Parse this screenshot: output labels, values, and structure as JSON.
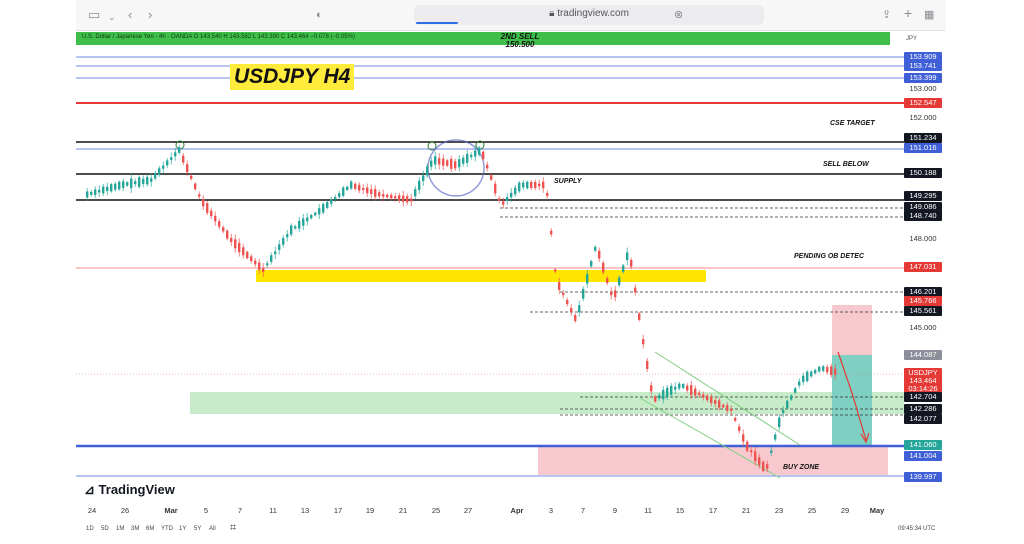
{
  "browser": {
    "url": "tradingview.com",
    "icons": [
      "sidebar-icon",
      "chevron-down-icon",
      "back-icon",
      "forward-icon",
      "shield-icon",
      "lock-icon",
      "reload-icon",
      "share-icon",
      "plus-icon",
      "tabs-icon"
    ]
  },
  "symbol": {
    "text": "U.S. Dollar / Japanese Yen · 4h · OANDA   O 143.540  H 143.582  L 143.390  C 143.464  −0.078 (−0.05%)",
    "currency": "JPY"
  },
  "title": "USDJPY H4",
  "annotations": {
    "second_sell_line1": "2ND SELL",
    "second_sell_line2": "150.500",
    "cse_target": "CSE TARGET",
    "sell_below": "SELL BELOW",
    "supply": "SUPPLY",
    "pending": "PENDING OB DETEC",
    "buy_zone": "BUY ZONE"
  },
  "price_labels": [
    {
      "value": "153.909",
      "style": "blue"
    },
    {
      "value": "153.741",
      "style": "blue"
    },
    {
      "value": "153.399",
      "style": "blue"
    },
    {
      "value": "153.000",
      "style": "plain"
    },
    {
      "value": "152.547",
      "style": "red"
    },
    {
      "value": "152.000",
      "style": "plain"
    },
    {
      "value": "151.234",
      "style": "black"
    },
    {
      "value": "151.016",
      "style": "blue"
    },
    {
      "value": "150.188",
      "style": "black"
    },
    {
      "value": "149.295",
      "style": "black"
    },
    {
      "value": "149.086",
      "style": "black"
    },
    {
      "value": "148.740",
      "style": "black"
    },
    {
      "value": "148.000",
      "style": "plain"
    },
    {
      "value": "147.031",
      "style": "red"
    },
    {
      "value": "146.201",
      "style": "black"
    },
    {
      "value": "145.766",
      "style": "red"
    },
    {
      "value": "145.561",
      "style": "black"
    },
    {
      "value": "145.000",
      "style": "plain"
    },
    {
      "value": "144.087",
      "style": "gray"
    },
    {
      "value": "USDJPY",
      "style": "red"
    },
    {
      "value": "143.464",
      "style": "red"
    },
    {
      "value": "03:14:26",
      "style": "red"
    },
    {
      "value": "142.704",
      "style": "black"
    },
    {
      "value": "142.286",
      "style": "black"
    },
    {
      "value": "142.077",
      "style": "black"
    },
    {
      "value": "141.060",
      "style": "green"
    },
    {
      "value": "141.004",
      "style": "blue"
    },
    {
      "value": "139.997",
      "style": "blue"
    }
  ],
  "x_axis": [
    "24",
    "26",
    "Mar",
    "5",
    "7",
    "11",
    "13",
    "17",
    "19",
    "21",
    "25",
    "27",
    "Apr",
    "3",
    "7",
    "9",
    "11",
    "15",
    "17",
    "21",
    "23",
    "25",
    "29",
    "May"
  ],
  "timeframes": [
    "1D",
    "5D",
    "1M",
    "3M",
    "6M",
    "YTD",
    "1Y",
    "5Y",
    "All"
  ],
  "clock": "09:45:34 UTC",
  "branding": "TradingView",
  "colors": {
    "green_zone": "#c8ecca",
    "yellow_zone": "#ffe600",
    "pink_zone": "#f7c9cf",
    "red_line": "#e53935",
    "blue_line": "#3f5fd6",
    "up": "#26a69a",
    "down": "#ef5350"
  }
}
